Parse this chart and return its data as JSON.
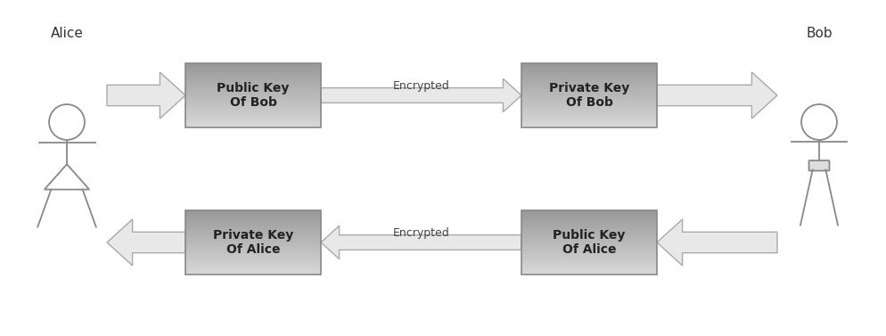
{
  "background_color": "#ffffff",
  "figure_width": 9.94,
  "figure_height": 3.77,
  "alice_label": "Alice",
  "bob_label": "Bob",
  "box1_label": "Public Key\nOf Bob",
  "box2_label": "Private Key\nOf Bob",
  "box3_label": "Private Key\nOf Alice",
  "box4_label": "Public Key\nOf Alice",
  "encrypted_top": "Encrypted",
  "encrypted_bottom": "Encrypted",
  "box_dark": "#a0a0a0",
  "box_light": "#d8d8d8",
  "box_edge": "#888888",
  "arrow_fill": "#e8e8e8",
  "arrow_edge": "#aaaaaa",
  "stick_color": "#888888",
  "text_color": "#222222",
  "label_color": "#333333",
  "xlim": [
    0,
    9.94
  ],
  "ylim": [
    0,
    3.77
  ]
}
